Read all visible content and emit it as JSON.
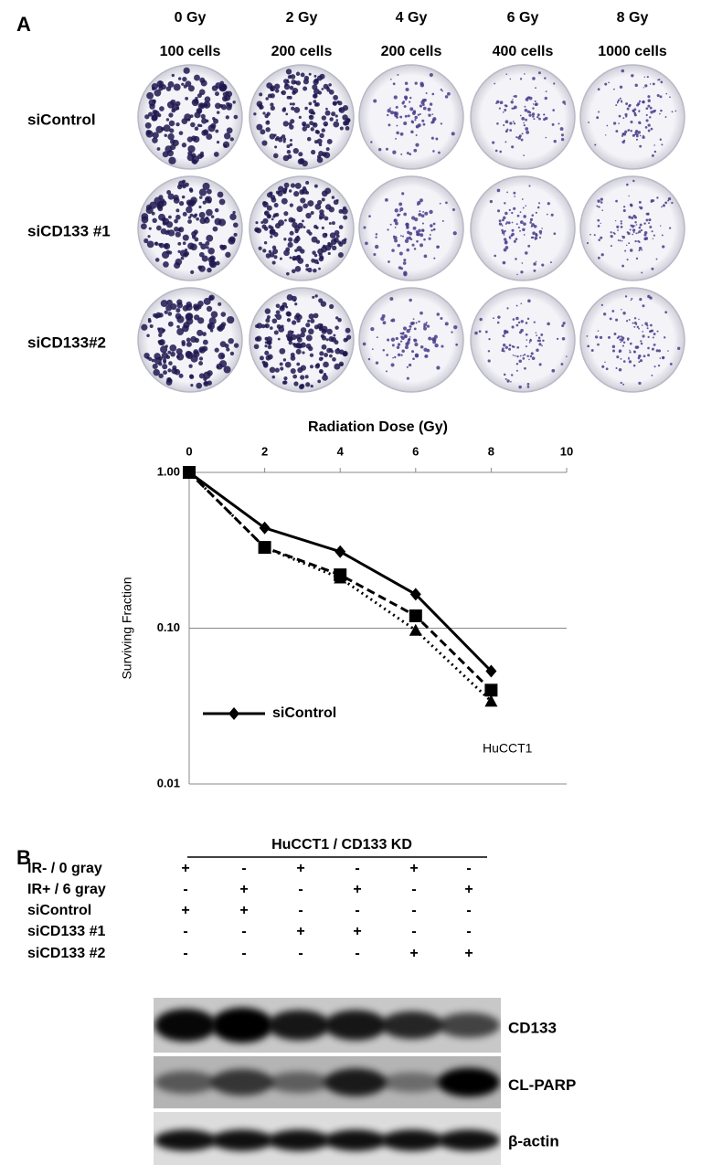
{
  "panel_a": {
    "label": "A",
    "columns": [
      {
        "dose": "0 Gy",
        "cells": "100 cells"
      },
      {
        "dose": "2 Gy",
        "cells": "200 cells"
      },
      {
        "dose": "4 Gy",
        "cells": "200 cells"
      },
      {
        "dose": "6 Gy",
        "cells": "400 cells"
      },
      {
        "dose": "8 Gy",
        "cells": "1000 cells"
      }
    ],
    "rows": [
      "siControl",
      "siCD133 #1",
      "siCD133#2"
    ]
  },
  "chart_data": {
    "type": "line",
    "xlabel": "Radiation Dose (Gy)",
    "ylabel": "Surviving Fraction",
    "x": [
      0,
      2,
      4,
      6,
      8
    ],
    "xlim": [
      0,
      10
    ],
    "xticks": [
      0,
      2,
      4,
      6,
      8,
      10
    ],
    "ylim": [
      0.01,
      1
    ],
    "yticks": [
      {
        "value": 1,
        "label": "1.00"
      },
      {
        "value": 0.1,
        "label": "0.10"
      },
      0.01
    ],
    "log_y": true,
    "grid": true,
    "legend": "lower left",
    "series": [
      {
        "name": "siControl",
        "color": "#000000",
        "linestyle": "solid",
        "marker": "diamond",
        "values": [
          1,
          0.44,
          0.31,
          0.165,
          0.053
        ]
      },
      {
        "color": "#000000",
        "linestyle": "dashed",
        "marker": "square",
        "values": [
          1,
          0.33,
          0.22,
          0.12,
          0.04
        ]
      },
      {
        "color": "#000000",
        "linestyle": "dotted",
        "marker": "triangle",
        "values": [
          1,
          0.33,
          0.21,
          0.097,
          0.034
        ]
      }
    ],
    "annotation": "HuCCT1"
  },
  "panel_b": {
    "label": "B",
    "header": "HuCCT1 / CD133 KD",
    "rows": [
      {
        "label": "IR- / 0 gray",
        "signs": [
          "+",
          "-",
          "+",
          "-",
          "+",
          "-"
        ]
      },
      {
        "label": "IR+ / 6 gray",
        "signs": [
          "-",
          "+",
          "-",
          "+",
          "-",
          "+"
        ]
      },
      {
        "label": "siControl",
        "signs": [
          "+",
          "+",
          "-",
          "-",
          "-",
          "-"
        ]
      },
      {
        "label": "siCD133 #1",
        "signs": [
          "-",
          "-",
          "+",
          "+",
          "-",
          "-"
        ]
      },
      {
        "label": "siCD133 #2",
        "signs": [
          "-",
          "-",
          "-",
          "-",
          "+",
          "+"
        ]
      }
    ],
    "blots": [
      "CD133",
      "CL-PARP",
      "β-actin"
    ]
  }
}
